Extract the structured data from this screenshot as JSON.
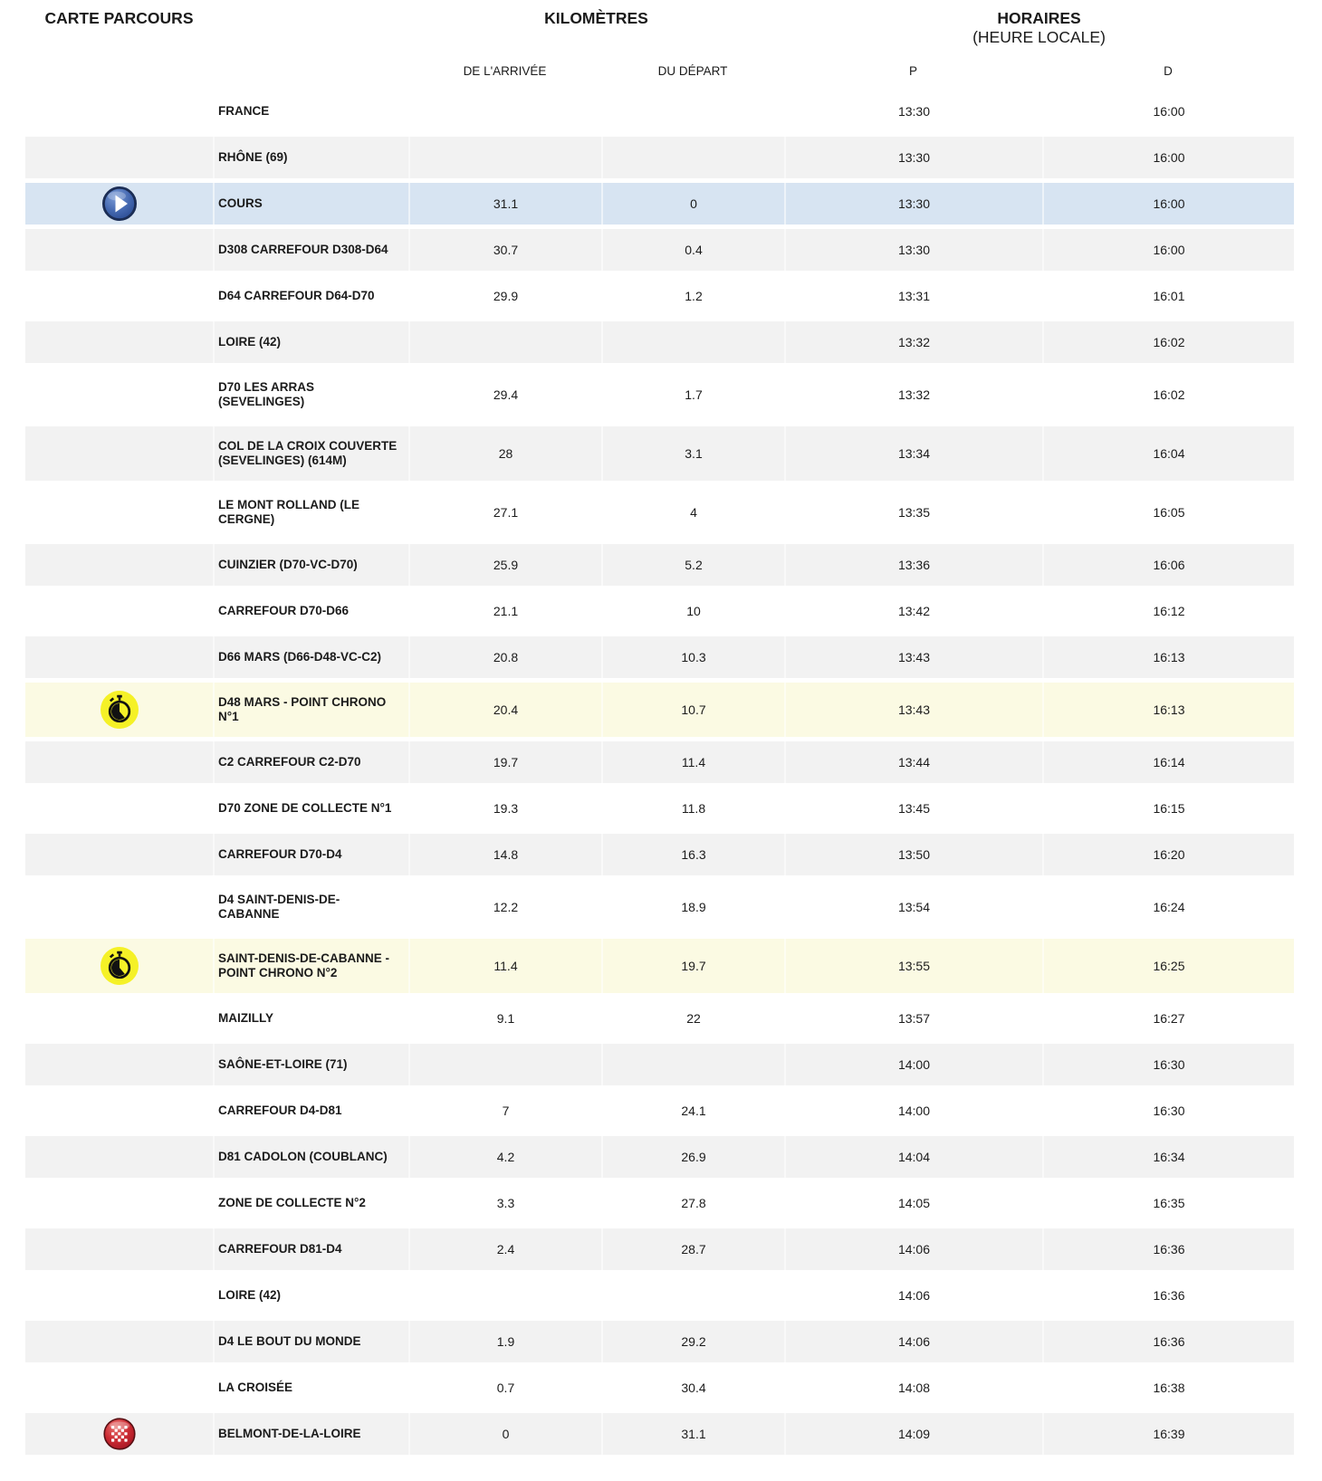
{
  "header": {
    "carte": "CARTE PARCOURS",
    "kilometres": "KILOMÈTRES",
    "horaires": "HORAIRES",
    "heure_locale": "(HEURE LOCALE)",
    "sub": {
      "arrivee": "DE L'ARRIVÉE",
      "depart": "DU DÉPART",
      "p": "P",
      "d": "D"
    }
  },
  "colors": {
    "stripe_gray": "#f2f2f2",
    "highlight_blue": "#d7e4f2",
    "highlight_yellow": "#fbfae3",
    "chrono_icon_yellow": "#f5f127",
    "start_icon_blue": "#3a5fa9",
    "finish_icon_red": "#c2242e",
    "text": "#1b1b1b"
  },
  "icons": {
    "start": "start-icon",
    "chrono": "chrono-icon",
    "finish": "finish-icon"
  },
  "rows": [
    {
      "name": "FRANCE",
      "arrivee": "",
      "depart": "",
      "p": "13:30",
      "d": "16:00",
      "icon": "",
      "highlight": ""
    },
    {
      "name": "RHÔNE (69)",
      "arrivee": "",
      "depart": "",
      "p": "13:30",
      "d": "16:00",
      "icon": "",
      "highlight": ""
    },
    {
      "name": "COURS",
      "arrivee": "31.1",
      "depart": "0",
      "p": "13:30",
      "d": "16:00",
      "icon": "start",
      "highlight": "blue"
    },
    {
      "name": "D308 CARREFOUR D308-D64",
      "arrivee": "30.7",
      "depart": "0.4",
      "p": "13:30",
      "d": "16:00",
      "icon": "",
      "highlight": ""
    },
    {
      "name": "D64 CARREFOUR D64-D70",
      "arrivee": "29.9",
      "depart": "1.2",
      "p": "13:31",
      "d": "16:01",
      "icon": "",
      "highlight": ""
    },
    {
      "name": "LOIRE (42)",
      "arrivee": "",
      "depart": "",
      "p": "13:32",
      "d": "16:02",
      "icon": "",
      "highlight": ""
    },
    {
      "name": "D70 LES ARRAS (SEVELINGES)",
      "arrivee": "29.4",
      "depart": "1.7",
      "p": "13:32",
      "d": "16:02",
      "icon": "",
      "highlight": ""
    },
    {
      "name": "COL DE LA CROIX COUVERTE\n(SEVELINGES) (614M)",
      "arrivee": "28",
      "depart": "3.1",
      "p": "13:34",
      "d": "16:04",
      "icon": "",
      "highlight": ""
    },
    {
      "name": "LE MONT ROLLAND (LE\nCERGNE)",
      "arrivee": "27.1",
      "depart": "4",
      "p": "13:35",
      "d": "16:05",
      "icon": "",
      "highlight": ""
    },
    {
      "name": "CUINZIER (D70-VC-D70)",
      "arrivee": "25.9",
      "depart": "5.2",
      "p": "13:36",
      "d": "16:06",
      "icon": "",
      "highlight": ""
    },
    {
      "name": "CARREFOUR D70-D66",
      "arrivee": "21.1",
      "depart": "10",
      "p": "13:42",
      "d": "16:12",
      "icon": "",
      "highlight": ""
    },
    {
      "name": "D66 MARS (D66-D48-VC-C2)",
      "arrivee": "20.8",
      "depart": "10.3",
      "p": "13:43",
      "d": "16:13",
      "icon": "",
      "highlight": ""
    },
    {
      "name": "D48 MARS - POINT CHRONO\nN°1",
      "arrivee": "20.4",
      "depart": "10.7",
      "p": "13:43",
      "d": "16:13",
      "icon": "chrono",
      "highlight": "yellow"
    },
    {
      "name": "C2 CARREFOUR C2-D70",
      "arrivee": "19.7",
      "depart": "11.4",
      "p": "13:44",
      "d": "16:14",
      "icon": "",
      "highlight": ""
    },
    {
      "name": "D70 ZONE DE COLLECTE N°1",
      "arrivee": "19.3",
      "depart": "11.8",
      "p": "13:45",
      "d": "16:15",
      "icon": "",
      "highlight": ""
    },
    {
      "name": "CARREFOUR D70-D4",
      "arrivee": "14.8",
      "depart": "16.3",
      "p": "13:50",
      "d": "16:20",
      "icon": "",
      "highlight": ""
    },
    {
      "name": "D4 SAINT-DENIS-DE-\nCABANNE",
      "arrivee": "12.2",
      "depart": "18.9",
      "p": "13:54",
      "d": "16:24",
      "icon": "",
      "highlight": ""
    },
    {
      "name": "SAINT-DENIS-DE-CABANNE -\nPOINT CHRONO N°2",
      "arrivee": "11.4",
      "depart": "19.7",
      "p": "13:55",
      "d": "16:25",
      "icon": "chrono",
      "highlight": "yellow"
    },
    {
      "name": "MAIZILLY",
      "arrivee": "9.1",
      "depart": "22",
      "p": "13:57",
      "d": "16:27",
      "icon": "",
      "highlight": ""
    },
    {
      "name": "SAÔNE-ET-LOIRE (71)",
      "arrivee": "",
      "depart": "",
      "p": "14:00",
      "d": "16:30",
      "icon": "",
      "highlight": ""
    },
    {
      "name": "CARREFOUR D4-D81",
      "arrivee": "7",
      "depart": "24.1",
      "p": "14:00",
      "d": "16:30",
      "icon": "",
      "highlight": ""
    },
    {
      "name": "D81 CADOLON (COUBLANC)",
      "arrivee": "4.2",
      "depart": "26.9",
      "p": "14:04",
      "d": "16:34",
      "icon": "",
      "highlight": ""
    },
    {
      "name": "ZONE DE COLLECTE N°2",
      "arrivee": "3.3",
      "depart": "27.8",
      "p": "14:05",
      "d": "16:35",
      "icon": "",
      "highlight": ""
    },
    {
      "name": "CARREFOUR D81-D4",
      "arrivee": "2.4",
      "depart": "28.7",
      "p": "14:06",
      "d": "16:36",
      "icon": "",
      "highlight": ""
    },
    {
      "name": "LOIRE (42)",
      "arrivee": "",
      "depart": "",
      "p": "14:06",
      "d": "16:36",
      "icon": "",
      "highlight": ""
    },
    {
      "name": "D4 LE BOUT DU MONDE",
      "arrivee": "1.9",
      "depart": "29.2",
      "p": "14:06",
      "d": "16:36",
      "icon": "",
      "highlight": ""
    },
    {
      "name": "LA CROISÉE",
      "arrivee": "0.7",
      "depart": "30.4",
      "p": "14:08",
      "d": "16:38",
      "icon": "",
      "highlight": ""
    },
    {
      "name": "BELMONT-DE-LA-LOIRE",
      "arrivee": "0",
      "depart": "31.1",
      "p": "14:09",
      "d": "16:39",
      "icon": "finish",
      "highlight": ""
    }
  ]
}
